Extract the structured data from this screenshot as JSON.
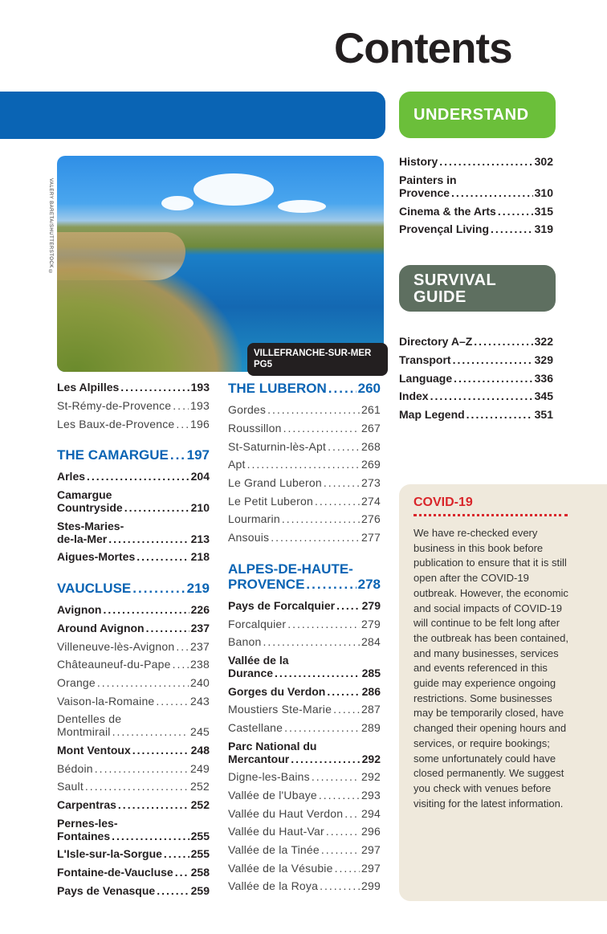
{
  "title": "Contents",
  "photo": {
    "caption": "VILLEFRANCHE-SUR-MER PG5",
    "credit": "VALERY BARETA/SHUTTERSTOCK ©"
  },
  "colors": {
    "blue": "#0a64b4",
    "green": "#6bbf3a",
    "survival": "#5e6f60",
    "covid_red": "#d9262b",
    "covid_bg": "#efe9dc"
  },
  "sections": {
    "understand": "UNDERSTAND",
    "survival": [
      "SURVIVAL",
      "GUIDE"
    ]
  },
  "left_column": [
    {
      "lines": [
        "Les Alpilles"
      ],
      "page": "193",
      "style": "bold"
    },
    {
      "lines": [
        "St-Rémy-de-Provence"
      ],
      "page": "193",
      "style": "light"
    },
    {
      "lines": [
        "Les Baux-de-Provence"
      ],
      "page": "196",
      "style": "light"
    },
    {
      "lines": [
        "THE CAMARGUE"
      ],
      "page": "197",
      "style": "head"
    },
    {
      "lines": [
        "Arles"
      ],
      "page": "204",
      "style": "bold"
    },
    {
      "lines": [
        "Camargue",
        "Countryside"
      ],
      "page": "210",
      "style": "bold"
    },
    {
      "lines": [
        "Stes-Maries-",
        "de-la-Mer"
      ],
      "page": "213",
      "style": "bold"
    },
    {
      "lines": [
        "Aigues-Mortes"
      ],
      "page": "218",
      "style": "bold"
    },
    {
      "lines": [
        "VAUCLUSE"
      ],
      "page": "219",
      "style": "head"
    },
    {
      "lines": [
        "Avignon"
      ],
      "page": "226",
      "style": "bold"
    },
    {
      "lines": [
        "Around Avignon"
      ],
      "page": "237",
      "style": "bold"
    },
    {
      "lines": [
        "Villeneuve-lès-Avignon"
      ],
      "page": "237",
      "style": "light"
    },
    {
      "lines": [
        "Châteauneuf-du-Pape"
      ],
      "page": "238",
      "style": "light"
    },
    {
      "lines": [
        "Orange"
      ],
      "page": "240",
      "style": "light"
    },
    {
      "lines": [
        "Vaison-la-Romaine"
      ],
      "page": "243",
      "style": "light"
    },
    {
      "lines": [
        "Dentelles de",
        "Montmirail"
      ],
      "page": "245",
      "style": "light"
    },
    {
      "lines": [
        "Mont Ventoux"
      ],
      "page": "248",
      "style": "bold"
    },
    {
      "lines": [
        "Bédoin"
      ],
      "page": "249",
      "style": "light"
    },
    {
      "lines": [
        "Sault"
      ],
      "page": "252",
      "style": "light"
    },
    {
      "lines": [
        "Carpentras"
      ],
      "page": "252",
      "style": "bold"
    },
    {
      "lines": [
        "Pernes-les-",
        "Fontaines"
      ],
      "page": "255",
      "style": "bold"
    },
    {
      "lines": [
        "L'Isle-sur-la-Sorgue"
      ],
      "page": "255",
      "style": "bold"
    },
    {
      "lines": [
        "Fontaine-de-Vaucluse"
      ],
      "page": "258",
      "style": "bold"
    },
    {
      "lines": [
        "Pays de Venasque"
      ],
      "page": "259",
      "style": "bold"
    }
  ],
  "middle_column": [
    {
      "lines": [
        "THE LUBERON"
      ],
      "page": "260",
      "style": "head"
    },
    {
      "lines": [
        "Gordes"
      ],
      "page": "261",
      "style": "light"
    },
    {
      "lines": [
        "Roussillon"
      ],
      "page": "267",
      "style": "light"
    },
    {
      "lines": [
        "St-Saturnin-lès-Apt"
      ],
      "page": "268",
      "style": "light"
    },
    {
      "lines": [
        "Apt"
      ],
      "page": "269",
      "style": "light"
    },
    {
      "lines": [
        "Le Grand Luberon"
      ],
      "page": "273",
      "style": "light"
    },
    {
      "lines": [
        "Le Petit Luberon"
      ],
      "page": "274",
      "style": "light"
    },
    {
      "lines": [
        "Lourmarin"
      ],
      "page": "276",
      "style": "light"
    },
    {
      "lines": [
        "Ansouis"
      ],
      "page": "277",
      "style": "light"
    },
    {
      "lines": [
        "ALPES-DE-HAUTE-",
        "PROVENCE"
      ],
      "page": "278",
      "style": "head"
    },
    {
      "lines": [
        "Pays de Forcalquier"
      ],
      "page": "279",
      "style": "bold"
    },
    {
      "lines": [
        "Forcalquier"
      ],
      "page": "279",
      "style": "light"
    },
    {
      "lines": [
        "Banon"
      ],
      "page": "284",
      "style": "light"
    },
    {
      "lines": [
        "Vallée de la",
        "Durance"
      ],
      "page": "285",
      "style": "bold"
    },
    {
      "lines": [
        "Gorges du Verdon"
      ],
      "page": "286",
      "style": "bold"
    },
    {
      "lines": [
        "Moustiers Ste-Marie"
      ],
      "page": "287",
      "style": "light"
    },
    {
      "lines": [
        "Castellane"
      ],
      "page": "289",
      "style": "light"
    },
    {
      "lines": [
        "Parc National du",
        "Mercantour"
      ],
      "page": "292",
      "style": "bold"
    },
    {
      "lines": [
        "Digne-les-Bains"
      ],
      "page": "292",
      "style": "light"
    },
    {
      "lines": [
        "Vallée de l'Ubaye"
      ],
      "page": "293",
      "style": "light"
    },
    {
      "lines": [
        "Vallée du Haut Verdon"
      ],
      "page": "294",
      "style": "light"
    },
    {
      "lines": [
        "Vallée du Haut-Var"
      ],
      "page": "296",
      "style": "light"
    },
    {
      "lines": [
        "Vallée de la Tinée"
      ],
      "page": "297",
      "style": "light"
    },
    {
      "lines": [
        "Vallée de la Vésubie"
      ],
      "page": "297",
      "style": "light"
    },
    {
      "lines": [
        "Vallée de la Roya"
      ],
      "page": "299",
      "style": "light"
    }
  ],
  "understand_items": [
    {
      "lines": [
        "History"
      ],
      "page": "302",
      "style": "bold"
    },
    {
      "lines": [
        "Painters in",
        "Provence"
      ],
      "page": "310",
      "style": "bold"
    },
    {
      "lines": [
        "Cinema & the Arts"
      ],
      "page": "315",
      "style": "bold"
    },
    {
      "lines": [
        "Provençal Living"
      ],
      "page": "319",
      "style": "bold"
    }
  ],
  "survival_items": [
    {
      "lines": [
        "Directory A–Z"
      ],
      "page": "322",
      "style": "bold"
    },
    {
      "lines": [
        "Transport"
      ],
      "page": "329",
      "style": "bold"
    },
    {
      "lines": [
        "Language"
      ],
      "page": "336",
      "style": "bold"
    },
    {
      "lines": [
        "Index"
      ],
      "page": "345",
      "style": "bold"
    },
    {
      "lines": [
        "Map Legend"
      ],
      "page": "351",
      "style": "bold"
    }
  ],
  "covid": {
    "title": "COVID-19",
    "text": "We have re-checked every business in this book before publication to ensure that it is still open after the COVID-19 outbreak. However, the economic and social impacts of COVID-19 will continue to be felt long after the outbreak has been contained, and many businesses, services and events referenced in this guide may experience ongoing restrictions. Some businesses may be temporarily closed, have changed their opening hours and services, or require bookings; some unfortunately could have closed permanently. We suggest you check with venues before visiting for the latest information."
  }
}
